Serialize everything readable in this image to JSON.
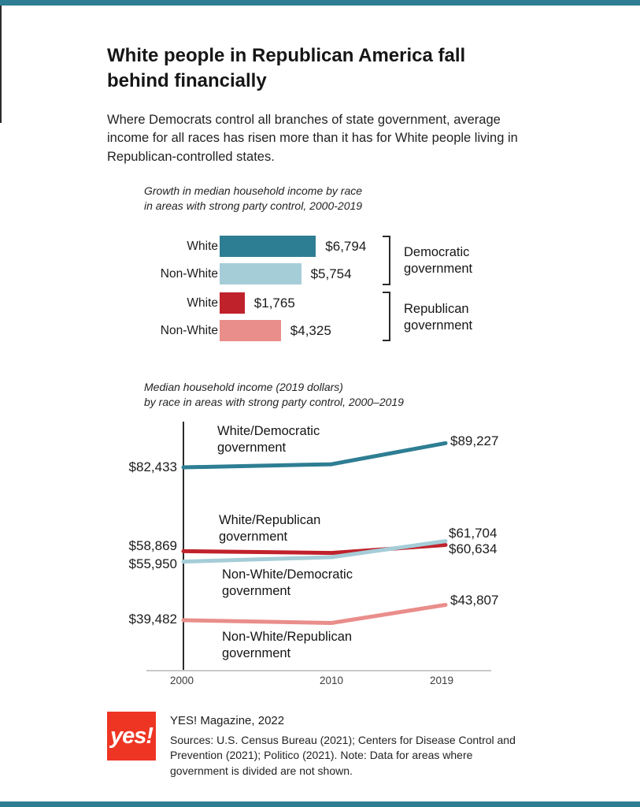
{
  "header": {
    "title": "White people in Republican America fall behind financially",
    "intro": "Where Democrats control all branches of state government, average income for all races has risen more than it has for White people living in Republican-controlled states."
  },
  "colors": {
    "band": "#2e7e93",
    "teal": "#2e7e93",
    "light_blue": "#a5cdd7",
    "red": "#c0222c",
    "pink": "#e98e8b",
    "logo_red": "#ee3524"
  },
  "chart_data": [
    {
      "type": "bar",
      "title": "Growth in median household income by race in areas with strong party control, 2000-2019",
      "title_lines": [
        "Growth in median household income by race",
        "in areas with strong party control, 2000-2019"
      ],
      "xlim": [
        0,
        7000
      ],
      "unit": "2019 dollars",
      "rows": [
        {
          "label": "White",
          "group": "Democratic government",
          "value": 6794,
          "value_label": "$6,794",
          "color": "#2e7e93"
        },
        {
          "label": "Non-White",
          "group": "Democratic government",
          "value": 5754,
          "value_label": "$5,754",
          "color": "#a5cdd7"
        },
        {
          "label": "White",
          "group": "Republican government",
          "value": 1765,
          "value_label": "$1,765",
          "color": "#c0222c"
        },
        {
          "label": "Non-White",
          "group": "Republican government",
          "value": 4325,
          "value_label": "$4,325",
          "color": "#e98e8b"
        }
      ],
      "group_labels": [
        {
          "lines": [
            "Democratic",
            "government"
          ]
        },
        {
          "lines": [
            "Republican",
            "government"
          ]
        }
      ]
    },
    {
      "type": "line",
      "title": "Median household income (2019 dollars) by race in areas with strong party control, 2000–2019",
      "title_lines": [
        "Median household income (2019 dollars)",
        "by race in areas with strong party control, 2000–2019"
      ],
      "x": [
        2000,
        2010,
        2019
      ],
      "x_tick_labels": [
        "2000",
        "2010",
        "2019"
      ],
      "ylim": [
        35000,
        95000
      ],
      "series": [
        {
          "name": "White/Democratic government",
          "label_lines": [
            "White/Democratic",
            "government"
          ],
          "color": "#2e7e93",
          "values": [
            82433,
            83300,
            89227
          ],
          "start_label": "$82,433",
          "end_label": "$89,227"
        },
        {
          "name": "White/Republican government",
          "label_lines": [
            "White/Republican",
            "government"
          ],
          "color": "#c0222c",
          "values": [
            58869,
            58400,
            60634
          ],
          "start_label": "$58,869",
          "end_label": "$60,634"
        },
        {
          "name": "Non-White/Democratic government",
          "label_lines": [
            "Non-White/Democratic",
            "government"
          ],
          "color": "#a5cdd7",
          "values": [
            55950,
            57200,
            61704
          ],
          "start_label": "$55,950",
          "end_label": "$61,704"
        },
        {
          "name": "Non-White/Republican government",
          "label_lines": [
            "Non-White/Republican",
            "government"
          ],
          "color": "#e98e8b",
          "values": [
            39482,
            38700,
            43807
          ],
          "start_label": "$39,482",
          "end_label": "$43,807"
        }
      ]
    }
  ],
  "footer": {
    "logo_text": "yes!",
    "credit": "YES! Magazine, 2022",
    "sources": "Sources: U.S. Census Bureau (2021); Centers for Disease Control and Prevention (2021); Politico (2021). Note: Data for areas where government is divided are not shown."
  }
}
